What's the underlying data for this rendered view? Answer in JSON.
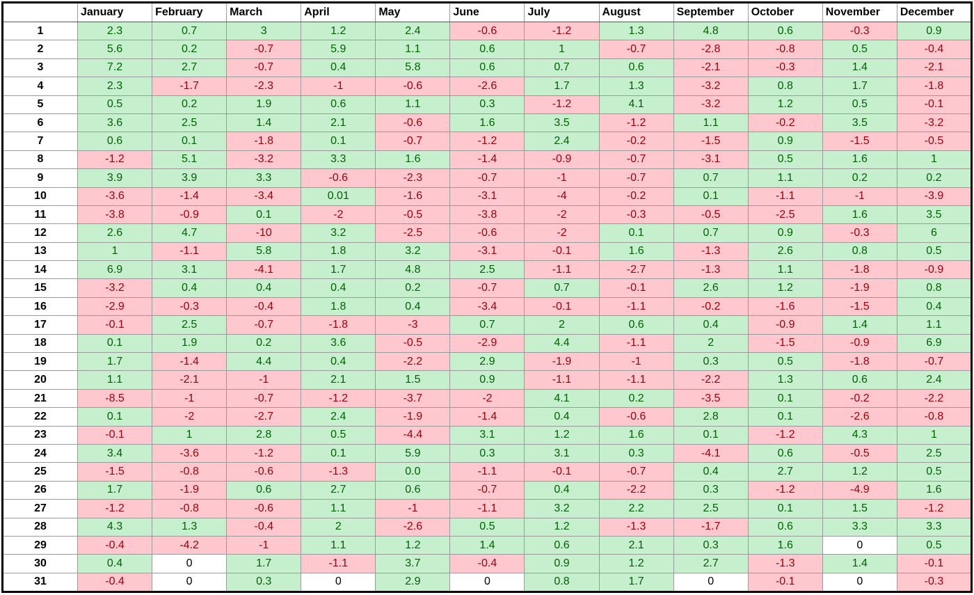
{
  "table": {
    "columns": [
      "January",
      "February",
      "March",
      "April",
      "May",
      "June",
      "July",
      "August",
      "September",
      "October",
      "November",
      "December"
    ],
    "colors": {
      "positive": {
        "fill": "#c6efce",
        "text": "#006100"
      },
      "negative": {
        "fill": "#ffc7ce",
        "text": "#9c0006"
      },
      "zero": {
        "fill": "#ffffff",
        "text": "#000000"
      }
    },
    "rows": [
      {
        "label": "1",
        "cells": [
          "2.3",
          "0.7",
          "3",
          "1.2",
          "2.4",
          "-0.6",
          "-1.2",
          "1.3",
          "4.8",
          "0.6",
          "-0.3",
          "0.9"
        ]
      },
      {
        "label": "2",
        "cells": [
          "5.6",
          "0.2",
          "-0.7",
          "5.9",
          "1.1",
          "0.6",
          "1",
          "-0.7",
          "-2.8",
          "-0.8",
          "0.5",
          "-0.4"
        ]
      },
      {
        "label": "3",
        "cells": [
          "7.2",
          "2.7",
          "-0.7",
          "0.4",
          "5.8",
          "0.6",
          "0.7",
          "0.6",
          "-2.1",
          "-0.3",
          "1.4",
          "-2.1"
        ]
      },
      {
        "label": "4",
        "cells": [
          "2.3",
          "-1.7",
          "-2.3",
          "-1",
          "-0.6",
          "-2.6",
          "1.7",
          "1.3",
          "-3.2",
          "0.8",
          "1.7",
          "-1.8"
        ]
      },
      {
        "label": "5",
        "cells": [
          "0.5",
          "0.2",
          "1.9",
          "0.6",
          "1.1",
          "0.3",
          "-1.2",
          "4.1",
          "-3.2",
          "1.2",
          "0.5",
          "-0.1"
        ]
      },
      {
        "label": "6",
        "cells": [
          "3.6",
          "2.5",
          "1.4",
          "2.1",
          "-0.6",
          "1.6",
          "3.5",
          "-1.2",
          "1.1",
          "-0.2",
          "3.5",
          "-3.2"
        ]
      },
      {
        "label": "7",
        "cells": [
          "0.6",
          "0.1",
          "-1.8",
          "0.1",
          "-0.7",
          "-1.2",
          "2.4",
          "-0.2",
          "-1.5",
          "0.9",
          "-1.5",
          "-0.5"
        ]
      },
      {
        "label": "8",
        "cells": [
          "-1.2",
          "5.1",
          "-3.2",
          "3.3",
          "1.6",
          "-1.4",
          "-0.9",
          "-0.7",
          "-3.1",
          "0.5",
          "1.6",
          "1"
        ]
      },
      {
        "label": "9",
        "cells": [
          "3.9",
          "3.9",
          "3.3",
          "-0.6",
          "-2.3",
          "-0.7",
          "-1",
          "-0.7",
          "0.7",
          "1.1",
          "0.2",
          "0.2"
        ]
      },
      {
        "label": "10",
        "cells": [
          "-3.6",
          "-1.4",
          "-3.4",
          "0.01",
          "-1.6",
          "-3.1",
          "-4",
          "-0.2",
          "0.1",
          "-1.1",
          "-1",
          "-3.9"
        ]
      },
      {
        "label": "11",
        "cells": [
          "-3.8",
          "-0.9",
          "0.1",
          "-2",
          "-0.5",
          "-3.8",
          "-2",
          "-0.3",
          "-0.5",
          "-2.5",
          "1.6",
          "3.5"
        ]
      },
      {
        "label": "12",
        "cells": [
          "2.6",
          "4.7",
          "-10",
          "3.2",
          "-2.5",
          "-0.6",
          "-2",
          "0.1",
          "0.7",
          "0.9",
          "-0.3",
          "6"
        ]
      },
      {
        "label": "13",
        "cells": [
          "1",
          "-1.1",
          "5.8",
          "1.8",
          "3.2",
          "-3.1",
          "-0.1",
          "1.6",
          "-1.3",
          "2.6",
          "0.8",
          "0.5"
        ]
      },
      {
        "label": "14",
        "cells": [
          "6.9",
          "3.1",
          "-4.1",
          "1.7",
          "4.8",
          "2.5",
          "-1.1",
          "-2.7",
          "-1.3",
          "1.1",
          "-1.8",
          "-0.9"
        ]
      },
      {
        "label": "15",
        "cells": [
          "-3.2",
          "0.4",
          "0.4",
          "0.4",
          "0.2",
          "-0.7",
          "0.7",
          "-0.1",
          "2.6",
          "1.2",
          "-1.9",
          "0.8"
        ]
      },
      {
        "label": "16",
        "cells": [
          "-2.9",
          "-0.3",
          "-0.4",
          "1.8",
          "0.4",
          "-3.4",
          "-0.1",
          "-1.1",
          "-0.2",
          "-1.6",
          "-1.5",
          "0.4"
        ]
      },
      {
        "label": "17",
        "cells": [
          "-0.1",
          "2.5",
          "-0.7",
          "-1.8",
          "-3",
          "0.7",
          "2",
          "0.6",
          "0.4",
          "-0.9",
          "1.4",
          "1.1"
        ]
      },
      {
        "label": "18",
        "cells": [
          "0.1",
          "1.9",
          "0.2",
          "3.6",
          "-0.5",
          "-2.9",
          "4.4",
          "-1.1",
          "2",
          "-1.5",
          "-0.9",
          "6.9"
        ]
      },
      {
        "label": "19",
        "cells": [
          "1.7",
          "-1.4",
          "4.4",
          "0.4",
          "-2.2",
          "2.9",
          "-1.9",
          "-1",
          "0.3",
          "0.5",
          "-1.8",
          "-0.7"
        ]
      },
      {
        "label": "20",
        "cells": [
          "1.1",
          "-2.1",
          "-1",
          "2.1",
          "1.5",
          "0.9",
          "-1.1",
          "-1.1",
          "-2.2",
          "1.3",
          "0.6",
          "2.4"
        ]
      },
      {
        "label": "21",
        "cells": [
          "-8.5",
          "-1",
          "-0.7",
          "-1.2",
          "-3.7",
          "-2",
          "4.1",
          "0.2",
          "-3.5",
          "0.1",
          "-0.2",
          "-2.2"
        ]
      },
      {
        "label": "22",
        "cells": [
          "0.1",
          "-2",
          "-2.7",
          "2.4",
          "-1.9",
          "-1.4",
          "0.4",
          "-0.6",
          "2.8",
          "0.1",
          "-2.6",
          "-0.8"
        ]
      },
      {
        "label": "23",
        "cells": [
          "-0.1",
          "1",
          "2.8",
          "0.5",
          "-4.4",
          "3.1",
          "1.2",
          "1.6",
          "0.1",
          "-1.2",
          "4.3",
          "1"
        ]
      },
      {
        "label": "24",
        "cells": [
          "3.4",
          "-3.6",
          "-1.2",
          "0.1",
          "5.9",
          "0.3",
          "3.1",
          "0.3",
          "-4.1",
          "0.6",
          "-0.5",
          "2.5"
        ]
      },
      {
        "label": "25",
        "cells": [
          "-1.5",
          "-0.8",
          "-0.6",
          "-1.3",
          "0.0",
          "-1.1",
          "-0.1",
          "-0.7",
          "0.4",
          "2.7",
          "1.2",
          "0.5"
        ]
      },
      {
        "label": "26",
        "cells": [
          "1.7",
          "-1.9",
          "0.6",
          "2.7",
          "0.6",
          "-0.7",
          "0.4",
          "-2.2",
          "0.3",
          "-1.2",
          "-4.9",
          "1.6"
        ]
      },
      {
        "label": "27",
        "cells": [
          "-1.2",
          "-0.8",
          "-0.6",
          "1.1",
          "-1",
          "-1.1",
          "3.2",
          "2.2",
          "2.5",
          "0.1",
          "1.5",
          "-1.2"
        ]
      },
      {
        "label": "28",
        "cells": [
          "4.3",
          "1.3",
          "-0.4",
          "2",
          "-2.6",
          "0.5",
          "1.2",
          "-1.3",
          "-1.7",
          "0.6",
          "3.3",
          "3.3"
        ]
      },
      {
        "label": "29",
        "cells": [
          "-0.4",
          "-4.2",
          "-1",
          "1.1",
          "1.2",
          "1.4",
          "0.6",
          "2.1",
          "0.3",
          "1.6",
          "0",
          "0.5"
        ]
      },
      {
        "label": "30",
        "cells": [
          "0.4",
          "0",
          "1.7",
          "-1.1",
          "3.7",
          "-0.4",
          "0.9",
          "1.2",
          "2.7",
          "-1.3",
          "1.4",
          "-0.1"
        ]
      },
      {
        "label": "31",
        "cells": [
          "-0.4",
          "0",
          "0.3",
          "0",
          "2.9",
          "0",
          "0.8",
          "1.7",
          "0",
          "-0.1",
          "0",
          "-0.3"
        ]
      }
    ]
  }
}
